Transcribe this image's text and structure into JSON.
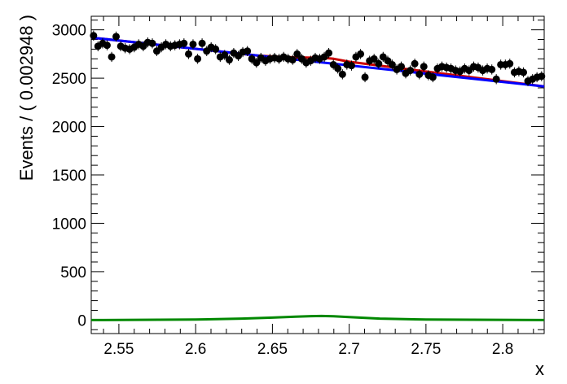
{
  "chart_data": {
    "type": "scatter",
    "title": "",
    "xlabel": "x",
    "ylabel": "Events / ( 0.002948 )",
    "xlim": [
      2.532,
      2.827
    ],
    "ylim": [
      -140,
      3140
    ],
    "x_ticks": [
      2.55,
      2.6,
      2.65,
      2.7,
      2.75,
      2.8
    ],
    "x_tick_labels": [
      "2.55",
      "2.6",
      "2.65",
      "2.7",
      "2.75",
      "2.8"
    ],
    "y_ticks": [
      0,
      500,
      1000,
      1500,
      2000,
      2500,
      3000
    ],
    "y_tick_labels": [
      "0",
      "500",
      "1000",
      "1500",
      "2000",
      "2500",
      "3000"
    ],
    "grid": false,
    "legend": "none",
    "bin_width": 0.002948,
    "series": [
      {
        "kind": "data-points-with-error-bars",
        "color": "#000000",
        "x": [
          2.5335,
          2.5364,
          2.5394,
          2.5423,
          2.5453,
          2.5482,
          2.5512,
          2.5541,
          2.557,
          2.56,
          2.5629,
          2.5659,
          2.5688,
          2.5718,
          2.5747,
          2.5777,
          2.5806,
          2.5836,
          2.5865,
          2.5895,
          2.5924,
          2.5954,
          2.5983,
          2.6013,
          2.6042,
          2.6072,
          2.6101,
          2.613,
          2.616,
          2.6189,
          2.6219,
          2.6248,
          2.6278,
          2.6307,
          2.6337,
          2.6366,
          2.6396,
          2.6425,
          2.6455,
          2.6484,
          2.6514,
          2.6543,
          2.6573,
          2.6602,
          2.6632,
          2.6661,
          2.6691,
          2.672,
          2.6749,
          2.6779,
          2.6808,
          2.6838,
          2.6867,
          2.6897,
          2.6926,
          2.6956,
          2.6985,
          2.7015,
          2.7044,
          2.7074,
          2.7103,
          2.7133,
          2.7162,
          2.7192,
          2.7221,
          2.7251,
          2.728,
          2.731,
          2.7339,
          2.7368,
          2.7398,
          2.7427,
          2.7457,
          2.7486,
          2.7516,
          2.7545,
          2.7575,
          2.7604,
          2.7634,
          2.7663,
          2.7693,
          2.7722,
          2.7752,
          2.7781,
          2.7811,
          2.784,
          2.787,
          2.7899,
          2.7929,
          2.7958,
          2.7987,
          2.8017,
          2.8046,
          2.8076,
          2.8105,
          2.8135,
          2.8164,
          2.8194,
          2.8223,
          2.8253
        ],
        "y": [
          2940,
          2830,
          2860,
          2840,
          2720,
          2930,
          2830,
          2810,
          2800,
          2820,
          2850,
          2830,
          2870,
          2860,
          2780,
          2820,
          2850,
          2830,
          2840,
          2850,
          2860,
          2750,
          2850,
          2700,
          2860,
          2780,
          2820,
          2800,
          2720,
          2740,
          2690,
          2760,
          2730,
          2770,
          2780,
          2700,
          2660,
          2710,
          2680,
          2700,
          2710,
          2700,
          2720,
          2700,
          2690,
          2750,
          2700,
          2660,
          2680,
          2710,
          2700,
          2720,
          2760,
          2640,
          2600,
          2540,
          2640,
          2630,
          2720,
          2750,
          2510,
          2680,
          2700,
          2650,
          2720,
          2680,
          2640,
          2590,
          2620,
          2550,
          2580,
          2650,
          2540,
          2620,
          2530,
          2510,
          2600,
          2620,
          2610,
          2600,
          2580,
          2570,
          2600,
          2580,
          2620,
          2610,
          2580,
          2600,
          2590,
          2490,
          2640,
          2640,
          2650,
          2560,
          2570,
          2560,
          2470,
          2490,
          2510,
          2520
        ],
        "yerr": 52
      },
      {
        "kind": "total-fit",
        "color": "#0000ff",
        "x": [
          2.532,
          2.827
        ],
        "y": [
          2920,
          2415
        ]
      },
      {
        "kind": "peak-component",
        "color": "#cc0000",
        "x": [
          2.532,
          2.64,
          2.655,
          2.665,
          2.675,
          2.682,
          2.69,
          2.7,
          2.715,
          2.827
        ],
        "y": [
          2920,
          2735,
          2720,
          2715,
          2712,
          2712,
          2700,
          2670,
          2640,
          2415
        ]
      },
      {
        "kind": "signal-component",
        "color": "#008800",
        "x": [
          2.532,
          2.6,
          2.63,
          2.65,
          2.665,
          2.675,
          2.682,
          2.69,
          2.7,
          2.72,
          2.75,
          2.827
        ],
        "y": [
          0,
          5,
          15,
          25,
          35,
          40,
          42,
          38,
          30,
          15,
          5,
          0
        ]
      }
    ]
  }
}
